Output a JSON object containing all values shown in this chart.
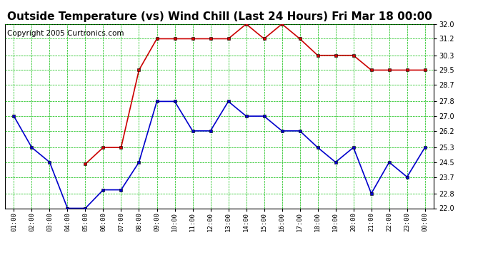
{
  "title": "Outside Temperature (vs) Wind Chill (Last 24 Hours) Fri Mar 18 00:00",
  "copyright": "Copyright 2005 Curtronics.com",
  "x_labels": [
    "01:00",
    "02:00",
    "03:00",
    "04:00",
    "05:00",
    "06:00",
    "07:00",
    "08:00",
    "09:00",
    "10:00",
    "11:00",
    "12:00",
    "13:00",
    "14:00",
    "15:00",
    "16:00",
    "17:00",
    "18:00",
    "19:00",
    "20:00",
    "21:00",
    "22:00",
    "23:00",
    "00:00"
  ],
  "red_data": [
    null,
    null,
    null,
    null,
    24.4,
    25.3,
    25.3,
    29.5,
    31.2,
    31.2,
    31.2,
    31.2,
    31.2,
    32.0,
    31.2,
    32.0,
    31.2,
    30.3,
    30.3,
    30.3,
    29.5,
    29.5,
    29.5,
    29.5
  ],
  "blue_data": [
    27.0,
    25.3,
    24.5,
    22.0,
    22.0,
    23.0,
    23.0,
    24.5,
    27.8,
    27.8,
    26.2,
    26.2,
    27.8,
    27.0,
    27.0,
    26.2,
    26.2,
    25.3,
    24.5,
    25.3,
    22.8,
    24.5,
    23.7,
    25.3
  ],
  "ylim": [
    22.0,
    32.0
  ],
  "yticks": [
    22.0,
    22.8,
    23.7,
    24.5,
    25.3,
    26.2,
    27.0,
    27.8,
    28.7,
    29.5,
    30.3,
    31.2,
    32.0
  ],
  "bg_color": "#ffffff",
  "grid_color": "#00bb00",
  "red_color": "#cc0000",
  "blue_color": "#0000cc",
  "title_fontsize": 11,
  "copyright_fontsize": 7.5,
  "fig_width": 6.9,
  "fig_height": 3.75,
  "dpi": 100
}
